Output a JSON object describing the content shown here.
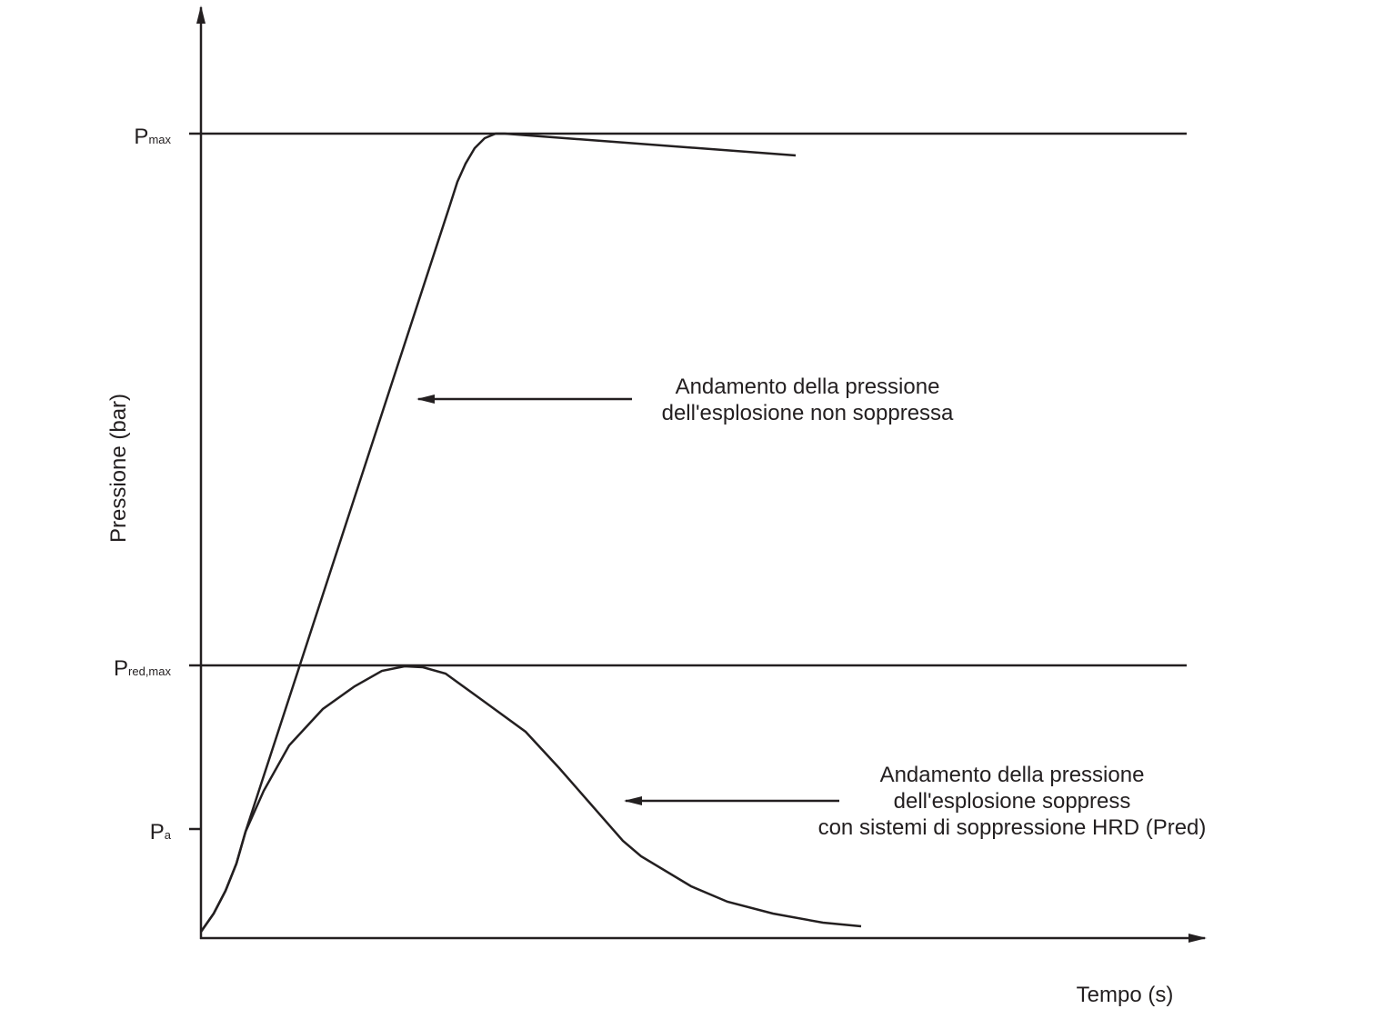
{
  "y_axis": {
    "label": "Pressione (bar)",
    "levels": [
      {
        "symbol": "P",
        "subscript": "max"
      },
      {
        "symbol": "P",
        "subscript": "red,max"
      },
      {
        "symbol": "P",
        "subscript": "a"
      }
    ]
  },
  "x_axis": {
    "label": "Tempo (s)"
  },
  "annotations": [
    {
      "lines": [
        "Andamento della pressione",
        "dell'esplosione non soppressa"
      ]
    },
    {
      "lines": [
        "Andamento della pressione",
        "dell'esplosione soppress",
        "con sistemi di soppressione HRD (Pred)"
      ]
    }
  ]
}
